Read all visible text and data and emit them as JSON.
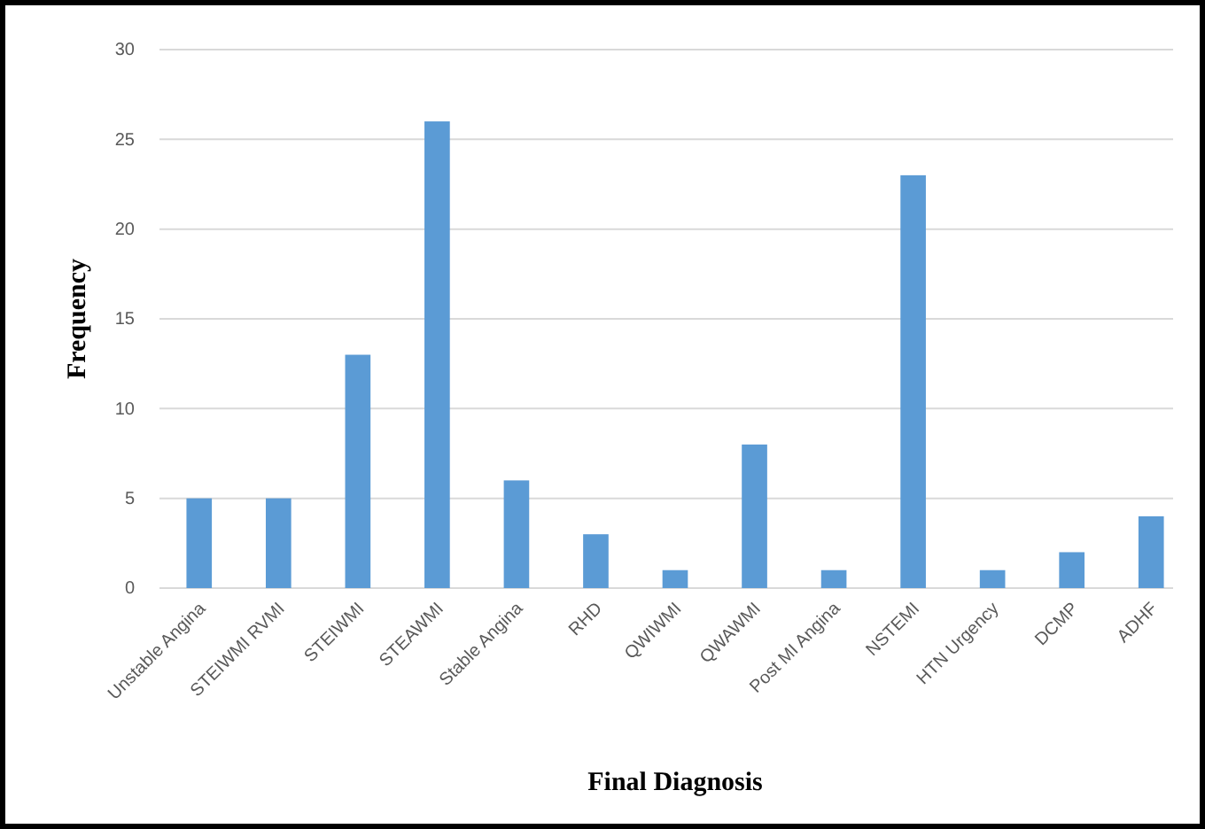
{
  "chart_data": {
    "type": "bar",
    "xlabel": "Final Diagnosis",
    "ylabel": "Frequency",
    "categories": [
      "Unstable Angina",
      "STEIWMI RVMI",
      "STEIWMI",
      "STEAWMI",
      "Stable Angina",
      "RHD",
      "QWIWMI",
      "QWAWMI",
      "Post MI Angina",
      "NSTEMI",
      "HTN Urgency",
      "DCMP",
      "ADHF"
    ],
    "values": [
      5,
      5,
      13,
      26,
      6,
      3,
      1,
      8,
      1,
      23,
      1,
      2,
      4
    ],
    "color": "#5b9bd5",
    "ylim": [
      0,
      30
    ],
    "yticks": [
      0,
      5,
      10,
      15,
      20,
      25,
      30
    ],
    "grid": "y"
  }
}
